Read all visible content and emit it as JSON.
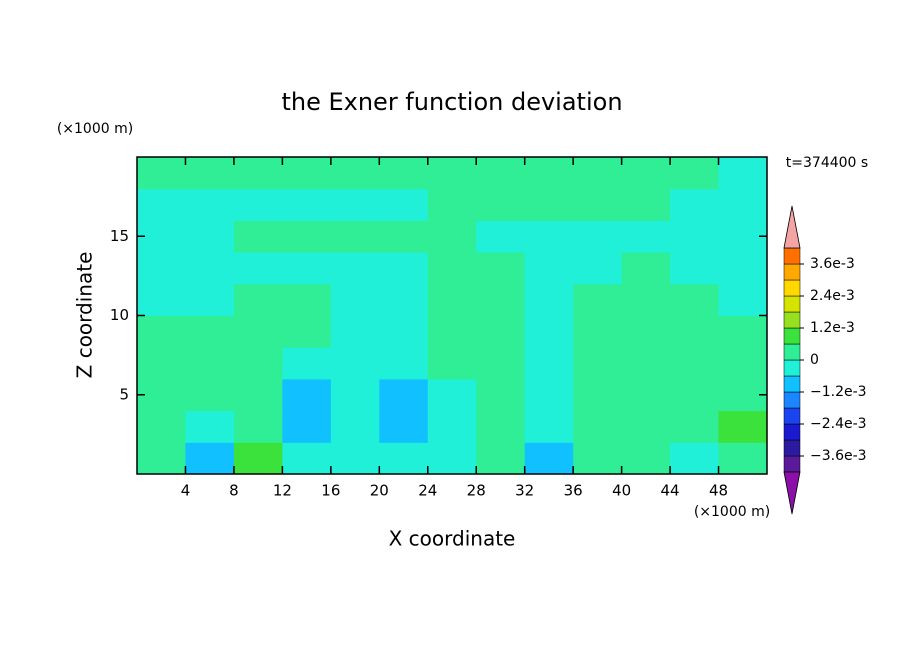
{
  "chart_data": {
    "type": "contour",
    "title": "the Exner function deviation",
    "x_label": "X coordinate",
    "y_label": "Z coordinate",
    "x_unit": "(×1000 m)",
    "y_unit": "(×1000 m)",
    "time_label": "t=374400 s",
    "xlim": [
      0,
      52
    ],
    "ylim": [
      0,
      20
    ],
    "xticks": [
      4,
      8,
      12,
      16,
      20,
      24,
      28,
      32,
      36,
      40,
      44,
      48
    ],
    "yticks": [
      5,
      10,
      15
    ],
    "x": [
      2,
      6,
      10,
      14,
      18,
      22,
      26,
      30,
      34,
      38,
      42,
      46,
      50
    ],
    "y": [
      1,
      3,
      5,
      7,
      9,
      11,
      13,
      15,
      17,
      19
    ],
    "z": [
      [
        0.0003,
        -0.0009,
        0.0009,
        -0.0003,
        -0.0003,
        -0.0003,
        -0.0003,
        0.0003,
        -0.0009,
        0.0003,
        0.0003,
        -0.0003,
        0.0003
      ],
      [
        0.0003,
        -0.0003,
        0.0003,
        -0.0009,
        -0.0003,
        -0.0009,
        -0.0003,
        0.0003,
        -0.0003,
        0.0003,
        0.0003,
        0.0003,
        0.0009
      ],
      [
        0.0003,
        0.0003,
        0.0003,
        -0.0009,
        -0.0003,
        -0.0009,
        -0.0003,
        0.0003,
        -0.0003,
        0.0003,
        0.0003,
        0.0003,
        0.0003
      ],
      [
        0.0003,
        0.0003,
        0.0003,
        -0.0003,
        -0.0003,
        -0.0003,
        0.0003,
        0.0003,
        -0.0003,
        0.0003,
        0.0003,
        0.0003,
        0.0003
      ],
      [
        0.0003,
        0.0003,
        0.0003,
        0.0003,
        -0.0003,
        -0.0003,
        0.0003,
        0.0003,
        -0.0003,
        0.0003,
        0.0003,
        0.0003,
        0.0003
      ],
      [
        -0.0003,
        -0.0003,
        0.0003,
        0.0003,
        -0.0003,
        -0.0003,
        0.0003,
        0.0003,
        -0.0003,
        0.0003,
        0.0003,
        0.0003,
        -0.0003
      ],
      [
        -0.0003,
        -0.0003,
        -0.0003,
        -0.0003,
        -0.0003,
        -0.0003,
        0.0003,
        0.0003,
        -0.0003,
        -0.0003,
        0.0003,
        -0.0003,
        -0.0003
      ],
      [
        -0.0003,
        -0.0003,
        0.0003,
        0.0003,
        0.0003,
        0.0003,
        0.0003,
        -0.0003,
        -0.0003,
        -0.0003,
        -0.0003,
        -0.0003,
        -0.0003
      ],
      [
        -0.0003,
        -0.0003,
        -0.0003,
        -0.0003,
        -0.0003,
        -0.0003,
        0.0003,
        0.0003,
        0.0003,
        0.0003,
        0.0003,
        -0.0003,
        -0.0003
      ],
      [
        0.0003,
        0.0003,
        0.0003,
        0.0003,
        0.0003,
        0.0003,
        0.0003,
        0.0003,
        0.0003,
        0.0003,
        0.0003,
        0.0003,
        -0.0003
      ]
    ],
    "levels": [
      -0.0042,
      -0.0036,
      -0.003,
      -0.0024,
      -0.0018,
      -0.0012,
      -0.0006,
      0,
      0.0006,
      0.0012,
      0.0018,
      0.0024,
      0.003,
      0.0036,
      0.0042
    ],
    "colors": [
      "#5a1a9a",
      "#2c1aa0",
      "#1a1ad0",
      "#1a44f0",
      "#1a86ff",
      "#10c0ff",
      "#20f0d8",
      "#30ee96",
      "#3ce23c",
      "#96e020",
      "#d4e400",
      "#ffd800",
      "#ffa800",
      "#ff7000"
    ],
    "extend_colors": [
      "#8a10a8",
      "#f4a4a4"
    ],
    "cbar_ticks": [
      {
        "value": 0.0036,
        "label": "3.6e-3"
      },
      {
        "value": 0.0024,
        "label": "2.4e-3"
      },
      {
        "value": 0.0012,
        "label": "1.2e-3"
      },
      0,
      {
        "value": -0.0012,
        "label": "−1.2e-3"
      },
      {
        "value": -0.0024,
        "label": "−2.4e-3"
      },
      {
        "value": -0.0036,
        "label": "−3.6e-3"
      }
    ]
  }
}
